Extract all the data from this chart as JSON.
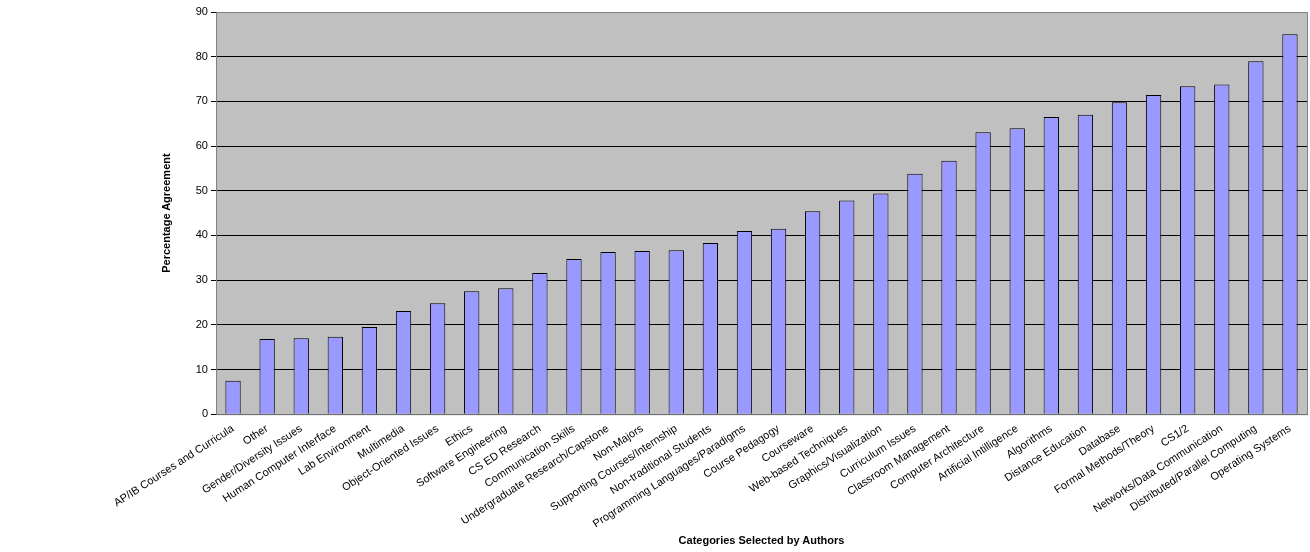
{
  "chart_data": {
    "type": "bar",
    "xlabel": "Categories Selected by Authors",
    "ylabel": "Percentage Agreement",
    "categories": [
      "AP/IB Courses and Curricula",
      "Other",
      "Gender/Diversity Issues",
      "Human Computer Interface",
      "Lab Environment",
      "Multimedia",
      "Object-Oriented Issues",
      "Ethics",
      "Software Engineering",
      "CS ED Research",
      "Communication Skills",
      "Undergraduate Research/Capstone",
      "Non-Majors",
      "Supporting Courses/Internship",
      "Non-traditional Students",
      "Programming Languages/Paradigms",
      "Course Pedagogy",
      "Courseware",
      "Web-based Techniques",
      "Graphics/Visualization",
      "Curriculum Issues",
      "Classroom Management",
      "Computer Architecture",
      "Artificial Intilligence",
      "Algorithms",
      "Distance Education",
      "Database",
      "Formal Methods/Theory",
      "CS1/2",
      "Networks/Data Communication",
      "Distributed/Parallel Computing",
      "Operating Systems"
    ],
    "values": [
      7.5,
      16.8,
      17,
      17.3,
      19.5,
      23.1,
      24.8,
      27.5,
      28.2,
      31.6,
      34.7,
      36.3,
      36.5,
      36.7,
      38.3,
      41,
      41.5,
      45.4,
      47.8,
      49.4,
      53.8,
      56.7,
      63.1,
      64,
      66.5,
      67,
      69.8,
      71.4,
      73.4,
      73.8,
      79,
      85
    ],
    "color": "#9999ff",
    "ylim": [
      0,
      90
    ],
    "yticks": [
      0,
      10,
      20,
      30,
      40,
      50,
      60,
      70,
      80,
      90
    ],
    "grid": "y",
    "legend": false
  }
}
